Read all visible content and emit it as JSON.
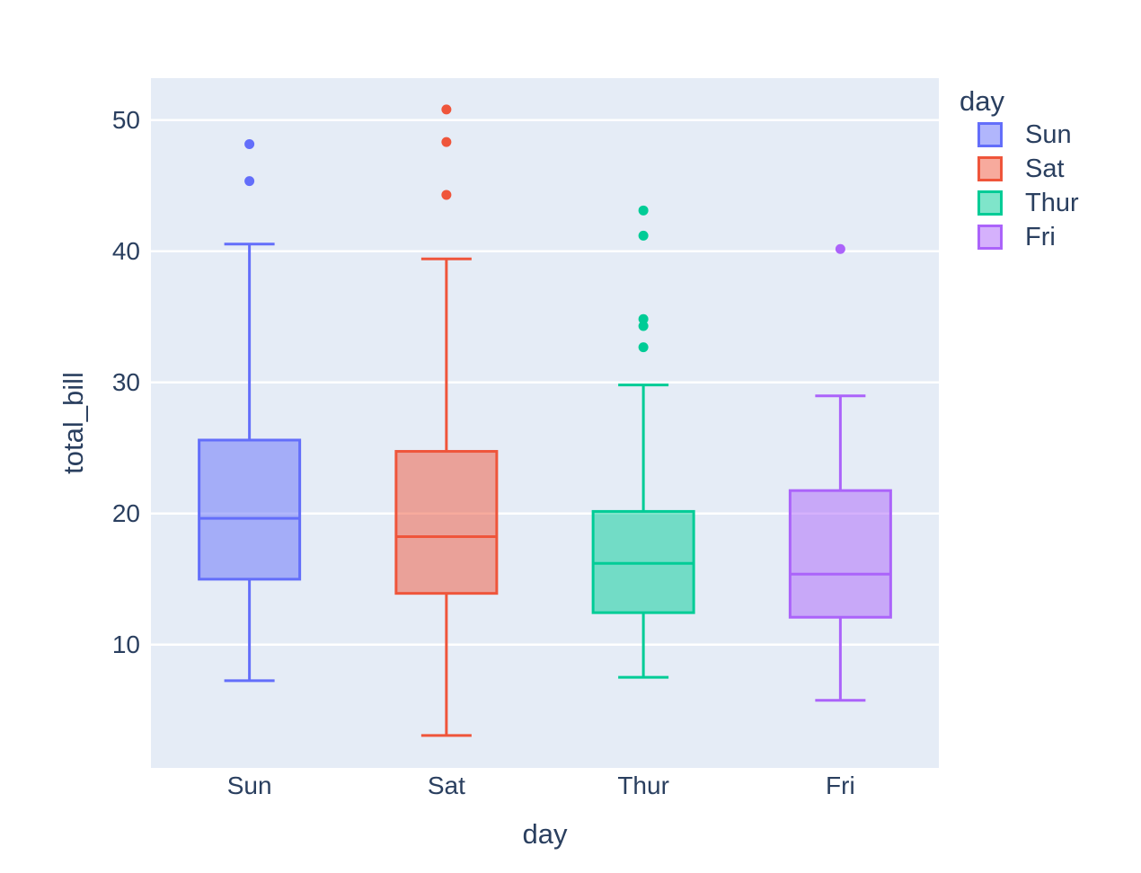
{
  "chart_data": {
    "type": "box",
    "title": "",
    "xlabel": "day",
    "ylabel": "total_bill",
    "categories": [
      "Sun",
      "Sat",
      "Thur",
      "Fri"
    ],
    "y_ticks": [
      10,
      20,
      30,
      40,
      50
    ],
    "ylim": [
      0.6,
      53.2
    ],
    "grid_on": true,
    "plot_bg": "#E5ECF6",
    "grid_color": "#FFFFFF",
    "font_color": "#2A3F5F",
    "legend": {
      "title": "day",
      "position": "top-right",
      "entries": [
        {
          "label": "Sun",
          "color": "#636EFA"
        },
        {
          "label": "Sat",
          "color": "#EF553B"
        },
        {
          "label": "Thur",
          "color": "#00CC96"
        },
        {
          "label": "Fri",
          "color": "#AB63FA"
        }
      ]
    },
    "series": [
      {
        "name": "Sun",
        "color": "#636EFA",
        "lower_fence": 7.25,
        "q1": 14.99,
        "median": 19.63,
        "q3": 25.6,
        "upper_fence": 40.55,
        "outliers": [
          45.35,
          48.17
        ]
      },
      {
        "name": "Sat",
        "color": "#EF553B",
        "lower_fence": 3.07,
        "q1": 13.91,
        "median": 18.24,
        "q3": 24.74,
        "upper_fence": 39.42,
        "outliers": [
          44.3,
          48.33,
          50.81
        ]
      },
      {
        "name": "Thur",
        "color": "#00CC96",
        "lower_fence": 7.51,
        "q1": 12.44,
        "median": 16.2,
        "q3": 20.16,
        "upper_fence": 29.8,
        "outliers": [
          32.68,
          34.3,
          34.83,
          41.19,
          43.11
        ]
      },
      {
        "name": "Fri",
        "color": "#AB63FA",
        "lower_fence": 5.75,
        "q1": 12.09,
        "median": 15.38,
        "q3": 21.75,
        "upper_fence": 28.97,
        "outliers": [
          40.17
        ]
      }
    ]
  }
}
